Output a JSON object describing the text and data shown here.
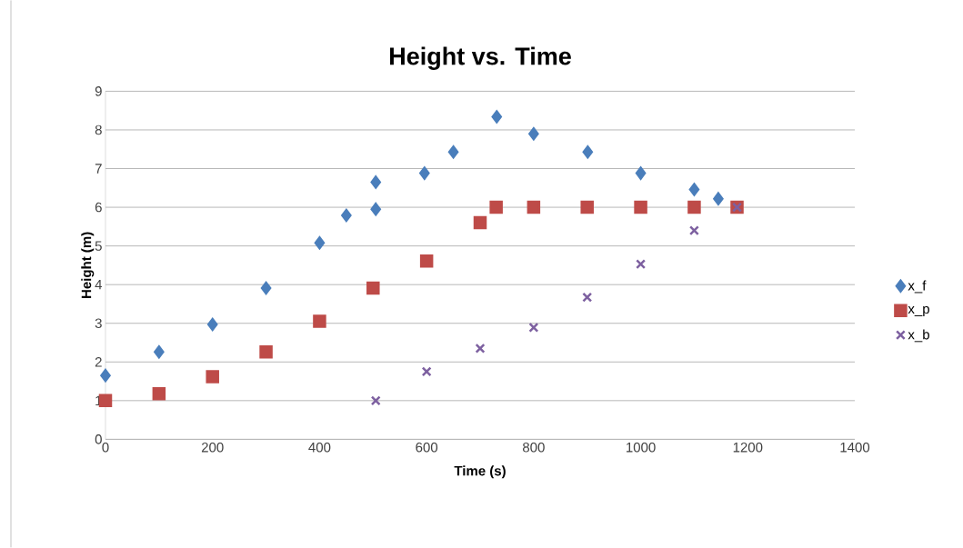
{
  "chart_data": {
    "type": "scatter",
    "title": "Height vs. Time",
    "xlabel": "Time (s)",
    "ylabel": "Height (m)",
    "xlim": [
      0,
      1400
    ],
    "xticks": [
      0,
      200,
      400,
      600,
      800,
      1000,
      1200,
      1400
    ],
    "ylim": [
      0,
      9
    ],
    "yticks": [
      0,
      1,
      2,
      3,
      4,
      5,
      6,
      7,
      8,
      9
    ],
    "grid": "y",
    "legend": "right",
    "series": [
      {
        "name": "x_f",
        "color": "#4a7ebb",
        "marker": "diamond",
        "x": [
          0,
          100,
          200,
          300,
          400,
          450,
          505,
          null,
          505,
          596,
          650,
          731,
          800,
          901,
          1000,
          1100,
          1145
        ],
        "values": [
          1.65,
          2.26,
          2.97,
          3.91,
          5.08,
          5.79,
          6.65,
          null,
          5.95,
          6.88,
          7.43,
          8.34,
          7.9,
          7.43,
          6.88,
          6.46,
          6.22
        ]
      },
      {
        "name": "x_p",
        "color": "#be4b48",
        "marker": "square",
        "x": [
          0,
          100,
          200,
          300,
          400,
          500,
          600,
          700,
          730,
          800,
          900,
          1000,
          1100,
          1180
        ],
        "values": [
          1.0,
          1.18,
          1.62,
          2.26,
          3.05,
          3.91,
          4.61,
          5.6,
          6.0,
          6.0,
          6.0,
          6.0,
          6.0,
          6.0
        ]
      },
      {
        "name": "x_b",
        "color": "#7d60a0",
        "marker": "cross",
        "x": [
          505,
          600,
          700,
          800,
          900,
          1000,
          1100,
          1180
        ],
        "values": [
          1.0,
          1.75,
          2.35,
          2.89,
          3.67,
          4.53,
          5.4,
          6.0
        ]
      }
    ]
  }
}
